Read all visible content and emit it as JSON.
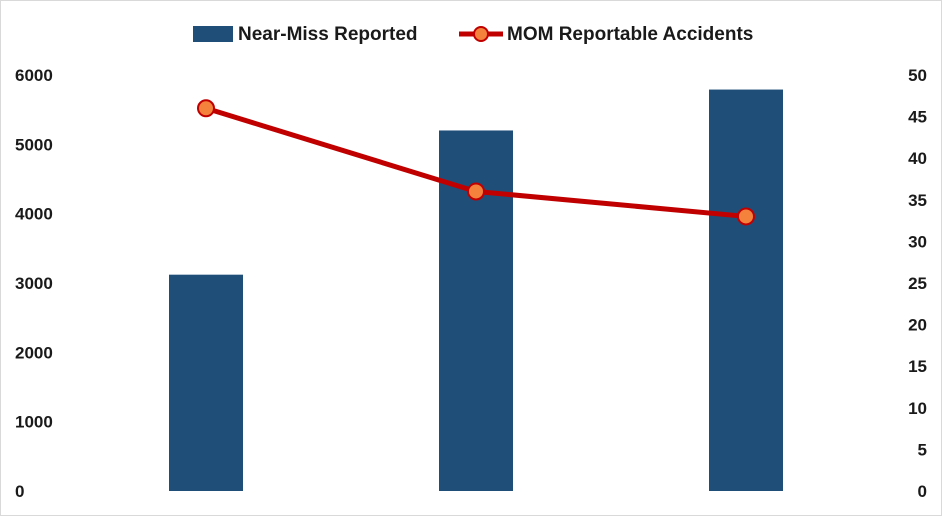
{
  "chart_data": {
    "type": "bar",
    "categories": [
      "",
      "",
      ""
    ],
    "series": [
      {
        "name": "Near-Miss Reported",
        "type": "bar",
        "axis": "left",
        "color": "#1f4e79",
        "values": [
          3120,
          5200,
          5790
        ]
      },
      {
        "name": "MOM Reportable Accidents",
        "type": "line",
        "axis": "right",
        "color": "#c00000",
        "marker_fill": "#f4813c",
        "values": [
          46,
          36,
          33
        ]
      }
    ],
    "y_left": {
      "min": 0,
      "max": 6000,
      "step": 1000,
      "ticks": [
        "0",
        "1000",
        "2000",
        "3000",
        "4000",
        "5000",
        "6000"
      ]
    },
    "y_right": {
      "min": 0,
      "max": 50,
      "step": 5,
      "ticks": [
        "0",
        "5",
        "10",
        "15",
        "20",
        "25",
        "30",
        "35",
        "40",
        "45",
        "50"
      ]
    },
    "legend_position": "top",
    "grid": false
  }
}
